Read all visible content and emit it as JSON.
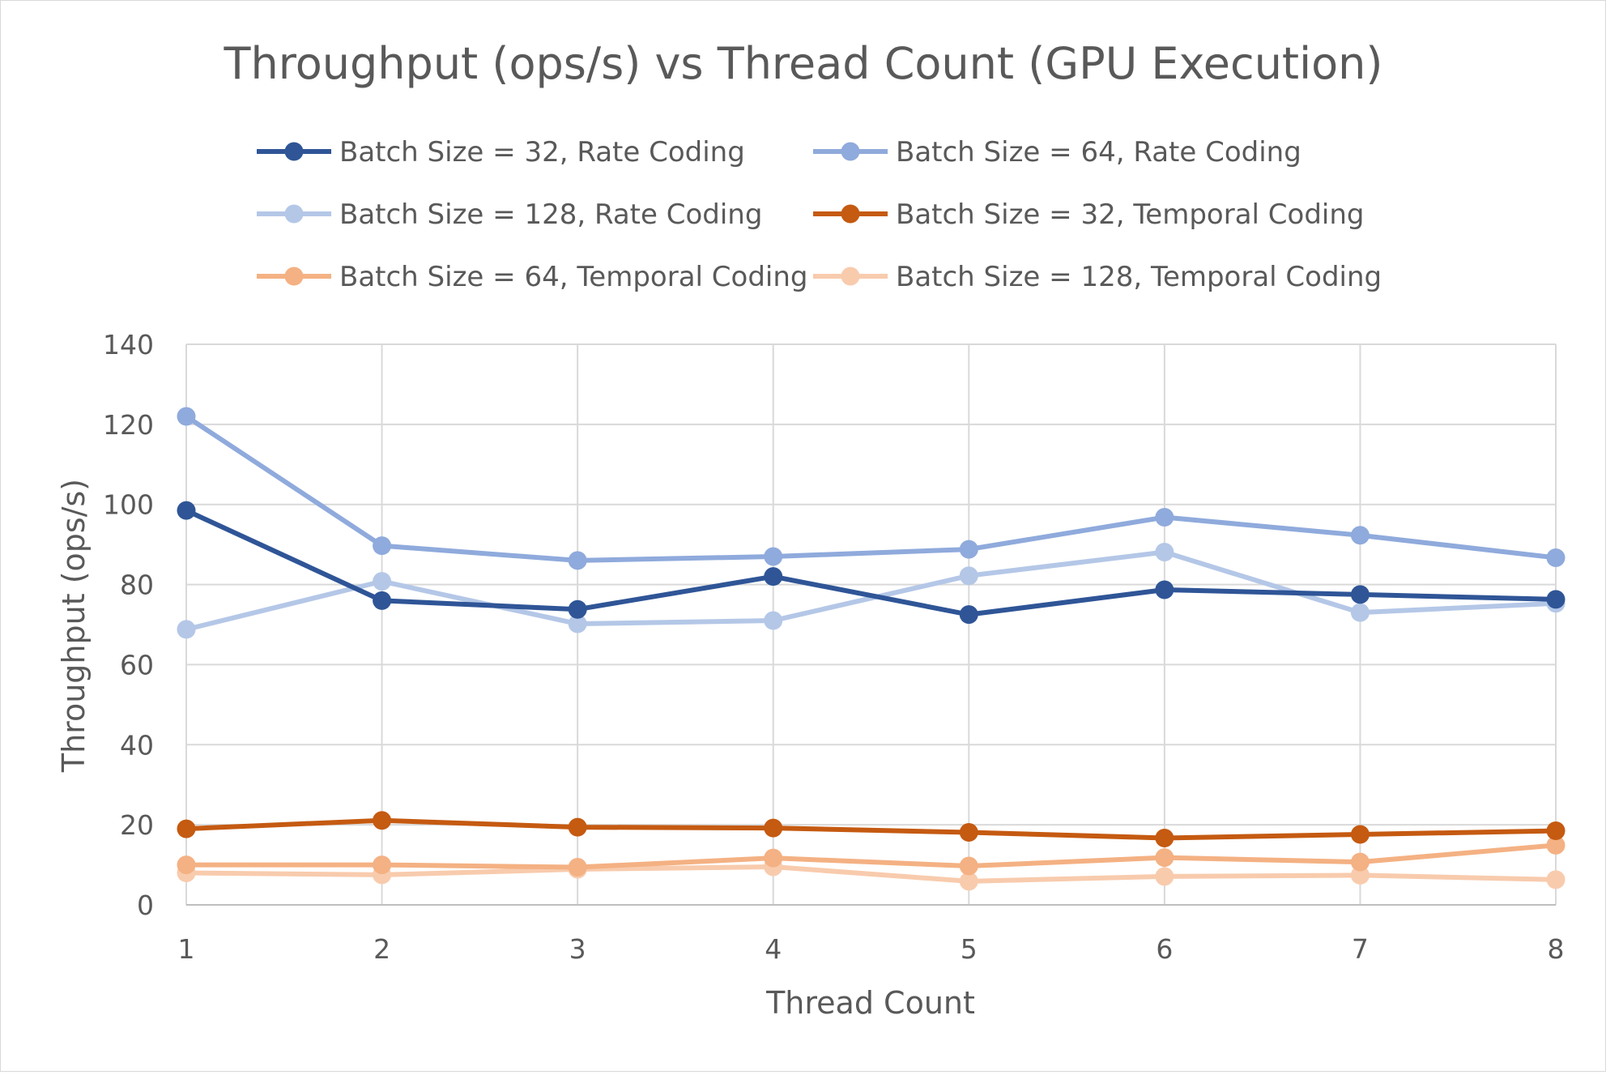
{
  "chart_data": {
    "type": "line",
    "title": "Throughput (ops/s) vs Thread Count (GPU Execution)",
    "xlabel": "Thread Count",
    "ylabel": "Throughput (ops/s)",
    "categories": [
      "1",
      "2",
      "3",
      "4",
      "5",
      "6",
      "7",
      "8"
    ],
    "x": [
      1,
      2,
      3,
      4,
      5,
      6,
      7,
      8
    ],
    "ylim": [
      0,
      140
    ],
    "yticks": [
      0,
      20,
      40,
      60,
      80,
      100,
      120,
      140
    ],
    "ytick_labels": [
      "0",
      "20",
      "40",
      "60",
      "80",
      "100",
      "120",
      "140"
    ],
    "grid": true,
    "legend_position": "top",
    "series": [
      {
        "name": "Batch Size = 32, Rate Coding",
        "color": "#2f5597",
        "values": [
          98.5,
          76,
          73.8,
          82,
          72.5,
          78.7,
          77.5,
          76.3
        ]
      },
      {
        "name": "Batch Size = 64, Rate Coding",
        "color": "#8faadc",
        "values": [
          122,
          89.7,
          86,
          87,
          88.8,
          96.8,
          92.3,
          86.7
        ]
      },
      {
        "name": "Batch Size = 128, Rate Coding",
        "color": "#b4c7e7",
        "values": [
          68.8,
          80.8,
          70.2,
          71,
          82.2,
          88.1,
          73,
          75.3
        ]
      },
      {
        "name": "Batch Size = 32, Temporal Coding",
        "color": "#c55a11",
        "values": [
          19,
          21.1,
          19.4,
          19.2,
          18.1,
          16.7,
          17.6,
          18.5
        ]
      },
      {
        "name": "Batch Size = 64, Temporal Coding",
        "color": "#f4b183",
        "values": [
          10,
          10,
          9.4,
          11.7,
          9.7,
          11.8,
          10.7,
          14.9
        ]
      },
      {
        "name": "Batch Size = 128, Temporal Coding",
        "color": "#f8cbad",
        "values": [
          8,
          7.5,
          8.9,
          9.5,
          5.9,
          7.1,
          7.4,
          6.3
        ]
      }
    ]
  }
}
